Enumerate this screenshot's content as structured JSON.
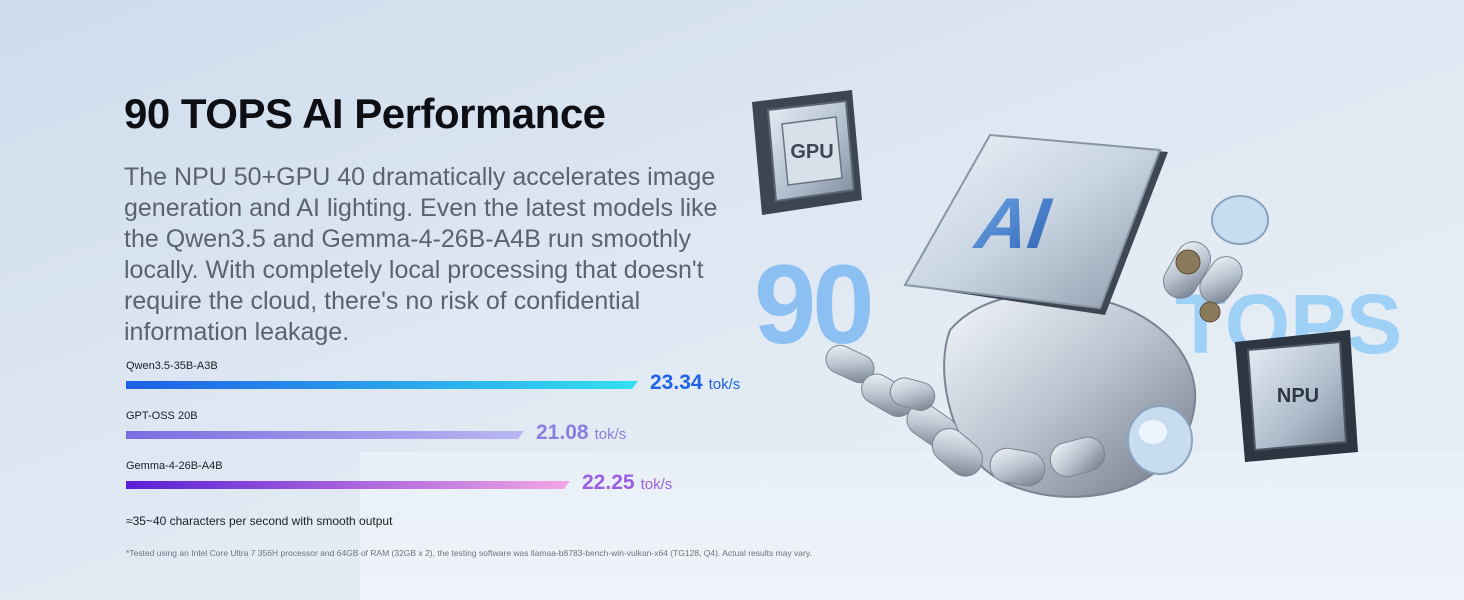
{
  "header": {
    "title": "90 TOPS AI Performance",
    "description": "The NPU 50+GPU 40 dramatically accelerates image generation and AI lighting. Even the latest models like the Qwen3.5 and Gemma-4-26B-A4B run smoothly locally. With completely local processing that doesn't require the cloud, there's no risk of confidential information leakage."
  },
  "chart_data": {
    "type": "bar",
    "categories": [
      "Qwen3.5-35B-A3B",
      "GPT-OSS 20B",
      "Gemma-4-26B-A4B"
    ],
    "values": [
      23.34,
      21.08,
      22.25
    ],
    "value_labels": [
      "23.34",
      "21.08",
      "22.25"
    ],
    "unit": "tok/s",
    "colors": [
      [
        "#1f5fe6",
        "#33e0f0"
      ],
      [
        "#7b6de0",
        "#b9b6f2"
      ],
      [
        "#5a1fd6",
        "#f3a6e4"
      ]
    ],
    "value_colors": [
      "#1f63e8",
      "#8a7fe0",
      "#9b5fe0"
    ]
  },
  "notes": {
    "chars_per_second": "≈35~40 characters per second with smooth output",
    "footnote": "*Tested using an Intel Core Ultra 7 356H processor and 64GB of RAM (32GB x 2), the testing software was llamaa-b8783-bench-win-vulkan-x64 (TG128, Q4). Actual results may vary."
  },
  "artwork": {
    "big_number": "90",
    "big_word": "TOPS",
    "gpu_chip_label": "GPU",
    "ai_chip_label": "AI",
    "npu_chip_label": "NPU"
  }
}
